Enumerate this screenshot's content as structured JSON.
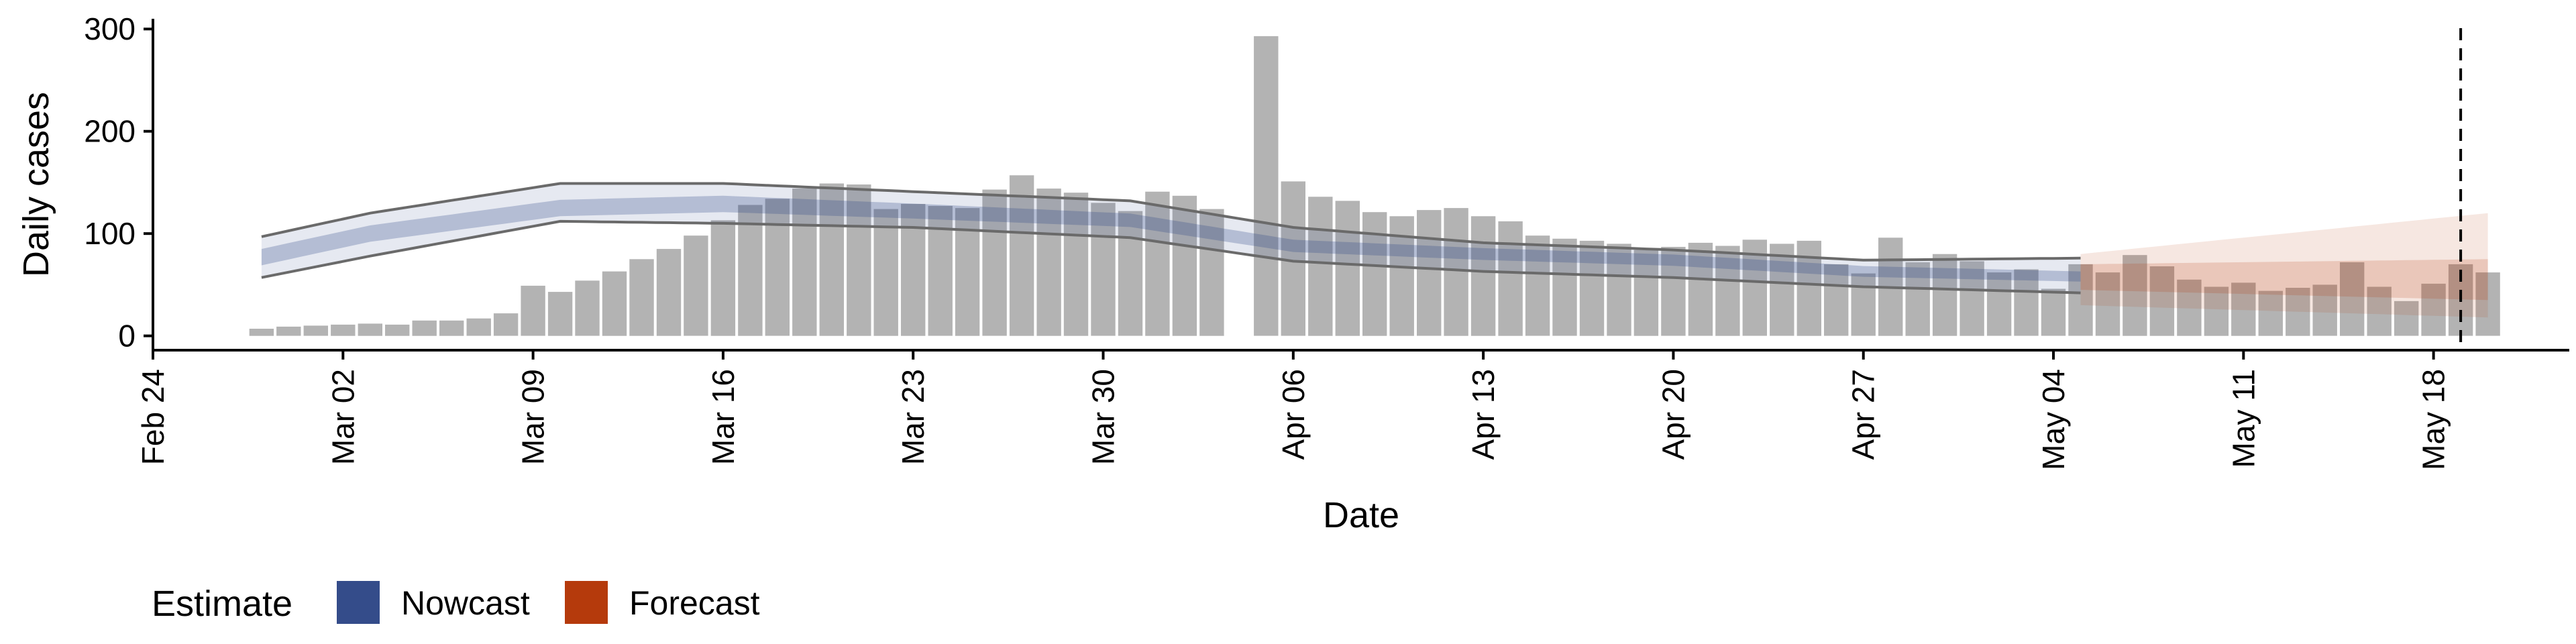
{
  "chart_data": {
    "type": "bar",
    "xlabel": "Date",
    "ylabel": "Daily cases",
    "ylim": [
      -14,
      310
    ],
    "xlim": [
      "2020-02-24",
      "2020-05-23"
    ],
    "y_ticks": [
      0,
      100,
      200,
      300
    ],
    "x_ticks": [
      {
        "date": "2020-02-24",
        "label": "Feb 24"
      },
      {
        "date": "2020-03-02",
        "label": "Mar 02"
      },
      {
        "date": "2020-03-09",
        "label": "Mar 09"
      },
      {
        "date": "2020-03-16",
        "label": "Mar 16"
      },
      {
        "date": "2020-03-23",
        "label": "Mar 23"
      },
      {
        "date": "2020-03-30",
        "label": "Mar 30"
      },
      {
        "date": "2020-04-06",
        "label": "Apr 06"
      },
      {
        "date": "2020-04-13",
        "label": "Apr 13"
      },
      {
        "date": "2020-04-20",
        "label": "Apr 20"
      },
      {
        "date": "2020-04-27",
        "label": "Apr 27"
      },
      {
        "date": "2020-05-04",
        "label": "May 04"
      },
      {
        "date": "2020-05-11",
        "label": "May 11"
      },
      {
        "date": "2020-05-18",
        "label": "May 18"
      }
    ],
    "vline_date": "2020-05-19",
    "grid": false,
    "legend": {
      "placement": "bottom-left",
      "title": "Estimate",
      "items": [
        {
          "label": "Nowcast",
          "color": "#344c8a"
        },
        {
          "label": "Forecast",
          "color": "#b53a0c"
        }
      ]
    },
    "bar_color": "#b3b3b3",
    "bars": {
      "start_date": "2020-02-28",
      "values": [
        7,
        9,
        10,
        11,
        12,
        11,
        15,
        15,
        17,
        22,
        49,
        43,
        54,
        63,
        75,
        85,
        98,
        113,
        128,
        134,
        144,
        149,
        148,
        124,
        129,
        127,
        125,
        143,
        157,
        144,
        140,
        130,
        122,
        141,
        137,
        124,
        0,
        293,
        151,
        136,
        132,
        121,
        117,
        123,
        125,
        117,
        112,
        98,
        95,
        93,
        90,
        84,
        87,
        91,
        88,
        94,
        90,
        93,
        70,
        61,
        96,
        72,
        80,
        73,
        62,
        65,
        46,
        70,
        62,
        79,
        68,
        55,
        48,
        52,
        44,
        47,
        50,
        72,
        48,
        34,
        51,
        70,
        62
      ]
    },
    "series": [
      {
        "name": "Nowcast",
        "color": "#344c8a",
        "start_date": "2020-02-28",
        "end_date": "2020-05-05",
        "median_keypoints": [
          [
            "2020-02-28",
            77
          ],
          [
            "2020-03-03",
            100
          ],
          [
            "2020-03-10",
            125
          ],
          [
            "2020-03-16",
            129
          ],
          [
            "2020-03-23",
            122
          ],
          [
            "2020-03-31",
            113
          ],
          [
            "2020-04-06",
            88
          ],
          [
            "2020-04-13",
            80
          ],
          [
            "2020-04-20",
            74
          ],
          [
            "2020-04-27",
            63
          ],
          [
            "2020-05-05",
            58
          ]
        ],
        "inner_halfwidth_keypoints": [
          [
            "2020-02-28",
            8
          ],
          [
            "2020-03-16",
            8
          ],
          [
            "2020-04-06",
            6
          ],
          [
            "2020-05-05",
            5
          ]
        ],
        "outer_keypoints": [
          [
            "2020-02-28",
            57,
            97
          ],
          [
            "2020-03-03",
            78,
            120
          ],
          [
            "2020-03-10",
            112,
            149
          ],
          [
            "2020-03-16",
            110,
            149
          ],
          [
            "2020-03-23",
            106,
            141
          ],
          [
            "2020-03-31",
            96,
            132
          ],
          [
            "2020-04-06",
            73,
            106
          ],
          [
            "2020-04-13",
            63,
            91
          ],
          [
            "2020-04-20",
            57,
            84
          ],
          [
            "2020-04-27",
            48,
            74
          ],
          [
            "2020-05-05",
            42,
            76
          ]
        ]
      },
      {
        "name": "Forecast",
        "color": "#b53a0c",
        "start_date": "2020-05-05",
        "end_date": "2020-05-20",
        "median_keypoints": [
          [
            "2020-05-05",
            58
          ],
          [
            "2020-05-20",
            52
          ]
        ],
        "inner_keypoints": [
          [
            "2020-05-05",
            45,
            70
          ],
          [
            "2020-05-20",
            35,
            75
          ]
        ],
        "outer_keypoints": [
          [
            "2020-05-05",
            30,
            80
          ],
          [
            "2020-05-20",
            18,
            120
          ]
        ]
      }
    ]
  }
}
